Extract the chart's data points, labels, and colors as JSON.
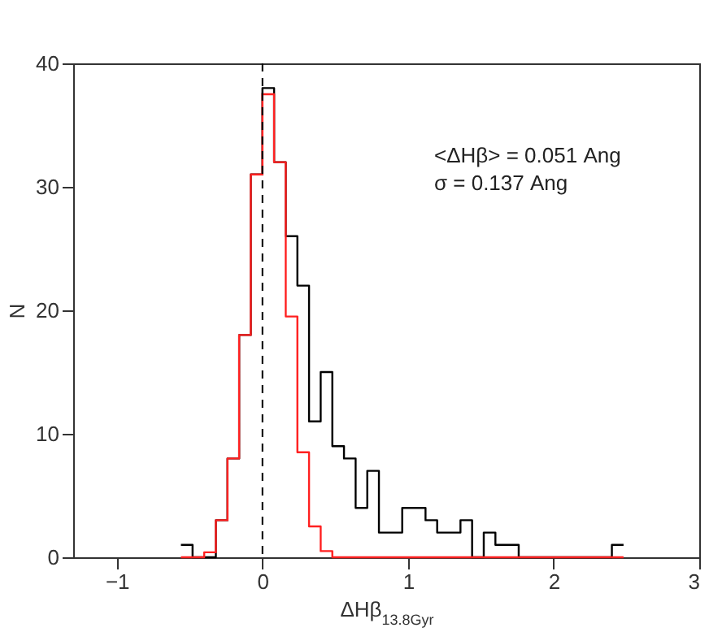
{
  "chart_data": {
    "type": "histogram",
    "xlabel": "ΔHβ$_{13.8Gyr}$",
    "ylabel": "N",
    "annotations": [
      "<ΔHβ> = 0.051 Ang",
      "σ = 0.137 Ang"
    ],
    "bins": [
      -0.56,
      -0.48,
      -0.4,
      -0.32,
      -0.24,
      -0.16,
      -0.08,
      0,
      0.08,
      0.16,
      0.24,
      0.32,
      0.4,
      0.48,
      0.56,
      0.64,
      0.72,
      0.8,
      0.88,
      0.96,
      1.04,
      1.12,
      1.2,
      1.28,
      1.36,
      1.44,
      1.52,
      1.6,
      1.68,
      1.76,
      1.84,
      1.92,
      2,
      2.08,
      2.16,
      2.24,
      2.32,
      2.4,
      2.48
    ],
    "series": [
      {
        "color": "#000000",
        "values": [
          1,
          0,
          0,
          3,
          8,
          18,
          31,
          38,
          32,
          26,
          22,
          11,
          15,
          9,
          8,
          4,
          7,
          2,
          2,
          4,
          4,
          3,
          2,
          2,
          3,
          0,
          2,
          1,
          1,
          0,
          0,
          0,
          0,
          0,
          0,
          0,
          0,
          1
        ]
      },
      {
        "color": "#ff2020",
        "values": [
          0,
          0,
          0.4,
          3,
          8,
          18,
          31,
          37.5,
          32,
          19.5,
          8.5,
          2.5,
          0.5,
          0,
          0,
          0,
          0,
          0,
          0,
          0,
          0,
          0,
          0,
          0,
          0,
          0,
          0,
          0,
          0,
          0,
          0,
          0,
          0,
          0,
          0,
          0,
          0,
          0
        ]
      }
    ],
    "xlim": [
      -1.3,
      3
    ],
    "xticks": [
      -1,
      0,
      1,
      2,
      3
    ],
    "ylim": [
      0,
      40
    ],
    "yticks": [
      0,
      10,
      20,
      30,
      40
    ],
    "ref_lines": [
      {
        "axis": "x",
        "value": 0,
        "line_style": "dashed",
        "color": "#000000"
      }
    ],
    "grid": false,
    "legend": false
  }
}
